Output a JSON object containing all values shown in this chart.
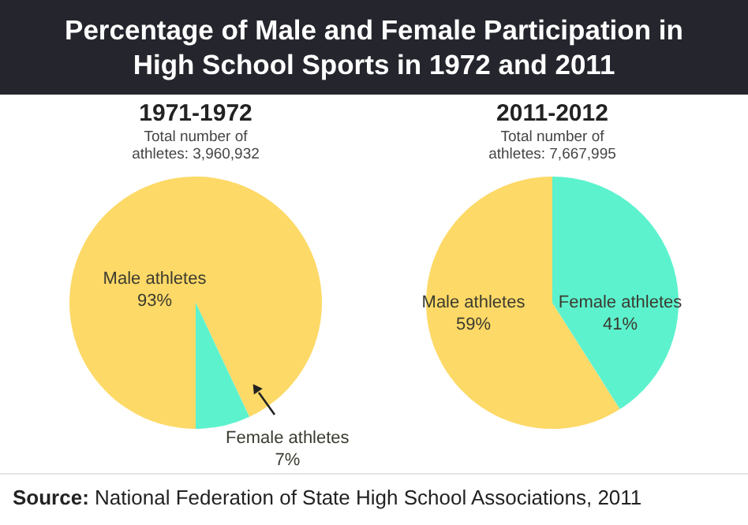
{
  "chart_data": [
    {
      "type": "other",
      "title": "Percentage of Male and Female Participation in High School Sports in 1972 and 2011",
      "annotations": [
        "Source: National Federation of State High School Associations, 2011"
      ]
    },
    {
      "type": "pie",
      "title": "1971-1972",
      "subtitle": "Total number of athletes: 3,960,932",
      "categories": [
        "Male athletes",
        "Female athletes"
      ],
      "values": [
        93,
        7
      ],
      "value_labels": [
        "93%",
        "7%"
      ],
      "colors": [
        "#fdd967",
        "#5cf2cd"
      ]
    },
    {
      "type": "pie",
      "title": "2011-2012",
      "subtitle": "Total number of athletes: 7,667,995",
      "categories": [
        "Male athletes",
        "Female athletes"
      ],
      "values": [
        59,
        41
      ],
      "value_labels": [
        "59%",
        "41%"
      ],
      "colors": [
        "#fdd967",
        "#5cf2cd"
      ]
    }
  ]
}
